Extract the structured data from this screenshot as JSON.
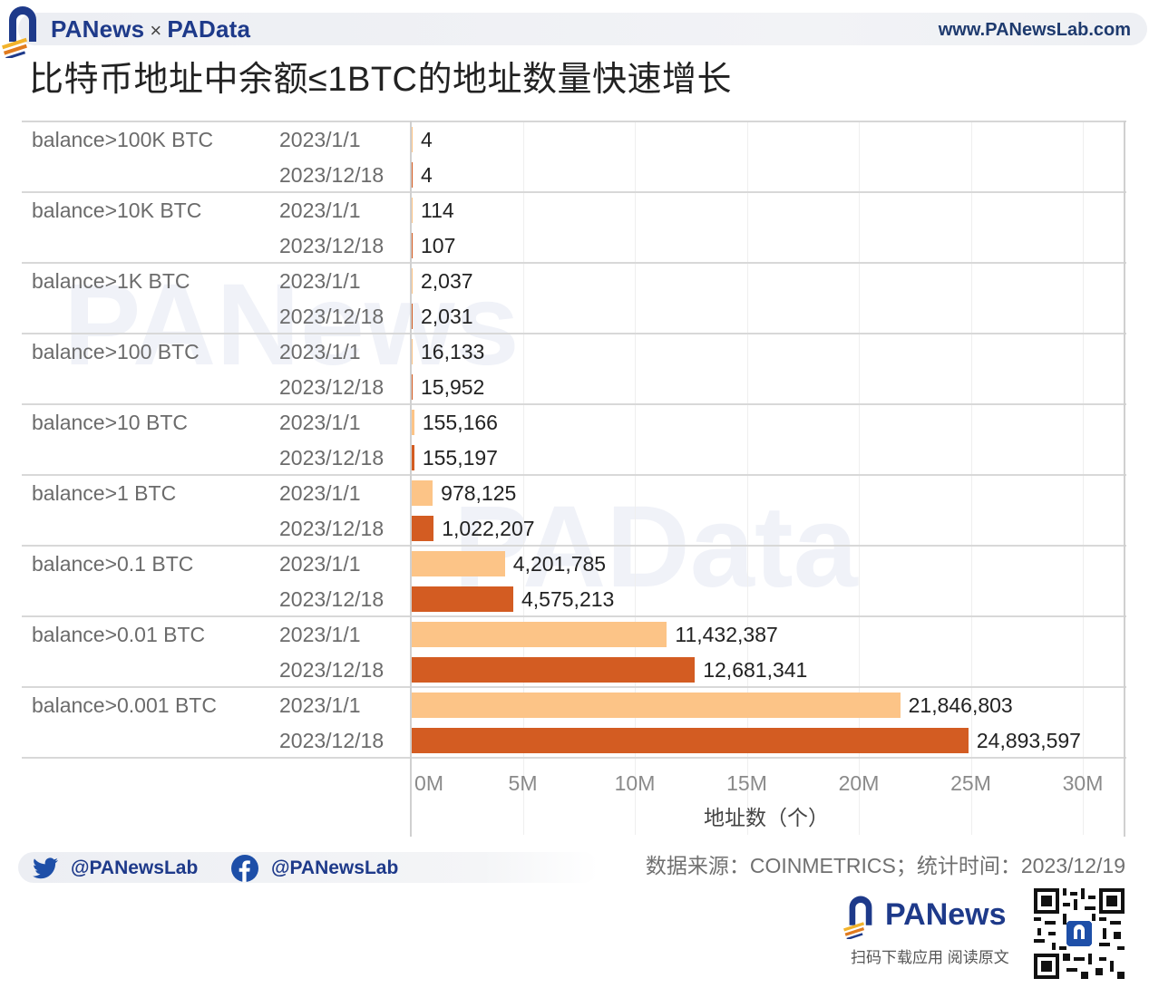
{
  "header": {
    "brand_left": "PANews",
    "brand_sep": "×",
    "brand_right": "PAData",
    "website": "www.PANewsLab.com"
  },
  "title": "比特币地址中余额≤1BTC的地址数量快速增长",
  "colors": {
    "series_2023_01_01": "#fcc487",
    "series_2023_12_18": "#d35c22",
    "brand_blue": "#1e3a8a",
    "brand_orange": "#e07b1f",
    "gridline": "#efefef",
    "divider": "#d8d8d8"
  },
  "chart_data": {
    "type": "bar",
    "orientation": "horizontal",
    "title": "比特币地址中余额≤1BTC的地址数量快速增长",
    "xlabel": "地址数（个）",
    "ylabel": "",
    "xlim": [
      0,
      30000000
    ],
    "x_ticks": [
      "0M",
      "5M",
      "10M",
      "15M",
      "20M",
      "25M",
      "30M"
    ],
    "grid": true,
    "legend": "none (dates shown as row labels)",
    "categories": [
      "balance>100K BTC",
      "balance>10K BTC",
      "balance>1K BTC",
      "balance>100 BTC",
      "balance>10 BTC",
      "balance>1 BTC",
      "balance>0.1 BTC",
      "balance>0.01 BTC",
      "balance>0.001 BTC"
    ],
    "series": [
      {
        "name": "2023/1/1",
        "color": "#fcc487",
        "values": [
          4,
          114,
          2037,
          16133,
          155166,
          978125,
          4201785,
          11432387,
          21846803
        ],
        "labels": [
          "4",
          "114",
          "2,037",
          "16,133",
          "155,166",
          "978,125",
          "4,201,785",
          "11,432,387",
          "21,846,803"
        ]
      },
      {
        "name": "2023/12/18",
        "color": "#d35c22",
        "values": [
          4,
          107,
          2031,
          15952,
          155197,
          1022207,
          4575213,
          12681341,
          24893597
        ],
        "labels": [
          "4",
          "107",
          "2,031",
          "15,952",
          "155,197",
          "1,022,207",
          "4,575,213",
          "12,681,341",
          "24,893,597"
        ]
      }
    ]
  },
  "footer": {
    "twitter_handle": "@PANewsLab",
    "facebook_handle": "@PANewsLab",
    "source": "数据来源：COINMETRICS；统计时间：2023/12/19",
    "app_brand": "PANews",
    "app_cta": "扫码下载应用  阅读原文"
  },
  "icons": {
    "twitter": "twitter-bird-icon",
    "facebook": "facebook-icon",
    "logo": "panews-arch-logo-icon",
    "qr": "qr-code-icon"
  }
}
